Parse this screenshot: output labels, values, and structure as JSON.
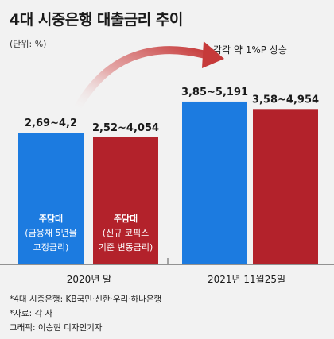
{
  "title": "4대 시중은행 대출금리 추이",
  "unit_label": "(단위: %)",
  "annotation": "각각 약 1%P 상승",
  "footnotes": [
    "*4대 시중은행: KB국민·신한·우리·하나은행",
    "*자료: 각 사",
    "그래픽: 이승현 디자인기자"
  ],
  "colors": {
    "blue": "#1c7be0",
    "red": "#b3222b",
    "arrow": "#c63a3a"
  },
  "chart_data": {
    "type": "bar",
    "groups": [
      {
        "label": "2020년 말",
        "bars": [
          {
            "series": "주담대 (금융채 5년물 고정금리)",
            "range_label": "2,69~4,2",
            "low": 2.69,
            "high": 4.2,
            "color": "blue",
            "bar_text": [
              "주담대",
              "(금융채 5년물",
              "고정금리)"
            ]
          },
          {
            "series": "주담대 (신규 코픽스 기준 변동금리)",
            "range_label": "2,52~4,054",
            "low": 2.52,
            "high": 4.054,
            "color": "red",
            "bar_text": [
              "주담대",
              "(신규 코픽스",
              "기준 변동금리)"
            ]
          }
        ]
      },
      {
        "label": "2021년 11월25일",
        "bars": [
          {
            "series": "주담대 (금융채 5년물 고정금리)",
            "range_label": "3,85~5,191",
            "low": 3.85,
            "high": 5.191,
            "color": "blue",
            "bar_text": []
          },
          {
            "series": "주담대 (신규 코픽스 기준 변동금리)",
            "range_label": "3,58~4,954",
            "low": 3.58,
            "high": 4.954,
            "color": "red",
            "bar_text": []
          }
        ]
      }
    ]
  }
}
